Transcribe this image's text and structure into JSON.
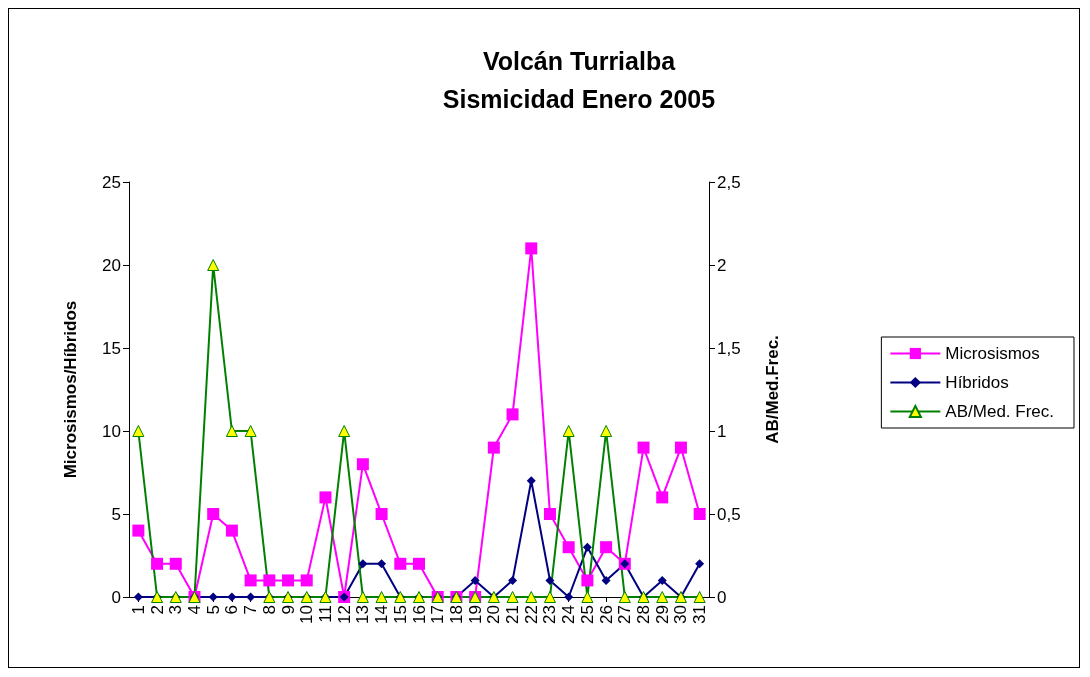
{
  "chart_data": {
    "type": "line",
    "title": "Volcán Turrialba\nSismicidad Enero 2005",
    "ylabel": "Microsismos/Híbridos",
    "y2label": "AB/Med.Frec.",
    "categories": [
      "1",
      "2",
      "3",
      "4",
      "5",
      "6",
      "7",
      "8",
      "9",
      "10",
      "11",
      "12",
      "13",
      "14",
      "15",
      "16",
      "17",
      "18",
      "19",
      "20",
      "21",
      "22",
      "23",
      "24",
      "25",
      "26",
      "27",
      "28",
      "29",
      "30",
      "31"
    ],
    "series": [
      {
        "name": "Microsismos",
        "color": "#ff00ff",
        "marker": "square",
        "values": [
          4,
          2,
          2,
          0,
          5,
          4,
          1,
          1,
          1,
          1,
          6,
          0,
          8,
          5,
          2,
          2,
          0,
          0,
          0,
          9,
          11,
          21,
          5,
          3,
          1,
          3,
          2,
          9,
          6,
          9,
          5
        ]
      },
      {
        "name": "Híbridos",
        "color": "#000080",
        "marker": "diamond",
        "values": [
          0,
          0,
          0,
          0,
          0,
          0,
          0,
          0,
          0,
          0,
          0,
          0,
          2,
          2,
          0,
          0,
          0,
          0,
          1,
          0,
          1,
          7,
          1,
          0,
          3,
          1,
          2,
          0,
          1,
          0,
          2
        ]
      },
      {
        "name": "AB/Med. Frec.",
        "color": "#008000",
        "marker": "triangle",
        "axis": "y2",
        "values": [
          1,
          0,
          0,
          0,
          2,
          1,
          1,
          0,
          0,
          0,
          0,
          1,
          0,
          0,
          0,
          0,
          0,
          0,
          0,
          0,
          0,
          0,
          0,
          1,
          0,
          1,
          0,
          0,
          0,
          0,
          0
        ]
      }
    ],
    "ylim": [
      0,
      25
    ],
    "yticks": [
      0,
      5,
      10,
      15,
      20,
      25
    ],
    "y2lim": [
      0,
      2.5
    ],
    "y2ticks": [
      0,
      {
        "value": 0.5,
        "label": "0,5"
      },
      1,
      {
        "value": 1.5,
        "label": "1,5"
      },
      2,
      {
        "value": 2.5,
        "label": "2,5"
      }
    ],
    "grid": false,
    "legend": "right",
    "line_style": "solid"
  }
}
